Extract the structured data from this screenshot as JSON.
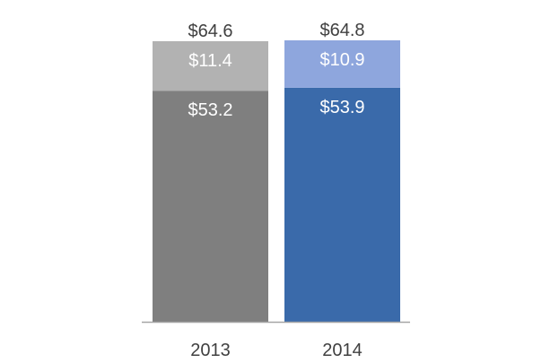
{
  "chart_data": {
    "type": "bar",
    "stacked": true,
    "categories": [
      "2013",
      "2014"
    ],
    "series": [
      {
        "values": [
          53.2,
          53.9
        ],
        "colors": [
          "#7f7f7f",
          "#3a6aaa"
        ]
      },
      {
        "values": [
          11.4,
          10.9
        ],
        "colors": [
          "#b2b2b2",
          "#8ea6dd"
        ]
      }
    ],
    "segment_labels": [
      [
        "$53.2",
        "$53.9"
      ],
      [
        "$11.4",
        "$10.9"
      ]
    ],
    "totals": [
      64.6,
      64.8
    ],
    "total_labels": [
      "$64.6",
      "$64.8"
    ],
    "title": "",
    "xlabel": "",
    "ylabel": "",
    "ylim": [
      0,
      64.8
    ],
    "grid": false,
    "legend": false,
    "axis_color": "#a6a6a6",
    "label_color": "#ffffff",
    "text_color": "#404040"
  }
}
